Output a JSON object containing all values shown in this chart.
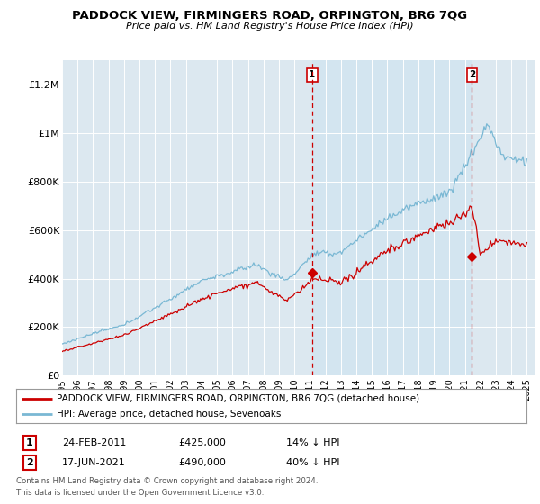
{
  "title": "PADDOCK VIEW, FIRMINGERS ROAD, ORPINGTON, BR6 7QG",
  "subtitle": "Price paid vs. HM Land Registry's House Price Index (HPI)",
  "legend_line1": "PADDOCK VIEW, FIRMINGERS ROAD, ORPINGTON, BR6 7QG (detached house)",
  "legend_line2": "HPI: Average price, detached house, Sevenoaks",
  "annotation1": {
    "num": "1",
    "date": "24-FEB-2011",
    "price": "£425,000",
    "pct": "14% ↓ HPI"
  },
  "annotation2": {
    "num": "2",
    "date": "17-JUN-2021",
    "price": "£490,000",
    "pct": "40% ↓ HPI"
  },
  "footer1": "Contains HM Land Registry data © Crown copyright and database right 2024.",
  "footer2": "This data is licensed under the Open Government Licence v3.0.",
  "hpi_color": "#7ab8d4",
  "price_color": "#cc0000",
  "annotation_line_color": "#cc0000",
  "background_color": "#ffffff",
  "plot_bg_color": "#dce8f0",
  "highlight_bg_color": "#c8dcea",
  "ylim": [
    0,
    1300000
  ],
  "yticks": [
    0,
    200000,
    400000,
    600000,
    800000,
    1000000,
    1200000
  ],
  "ytick_labels": [
    "£0",
    "£200K",
    "£400K",
    "£600K",
    "£800K",
    "£1M",
    "£1.2M"
  ],
  "sale1_year": 2011.14,
  "sale1_price": 425000,
  "sale2_year": 2021.46,
  "sale2_price": 490000
}
